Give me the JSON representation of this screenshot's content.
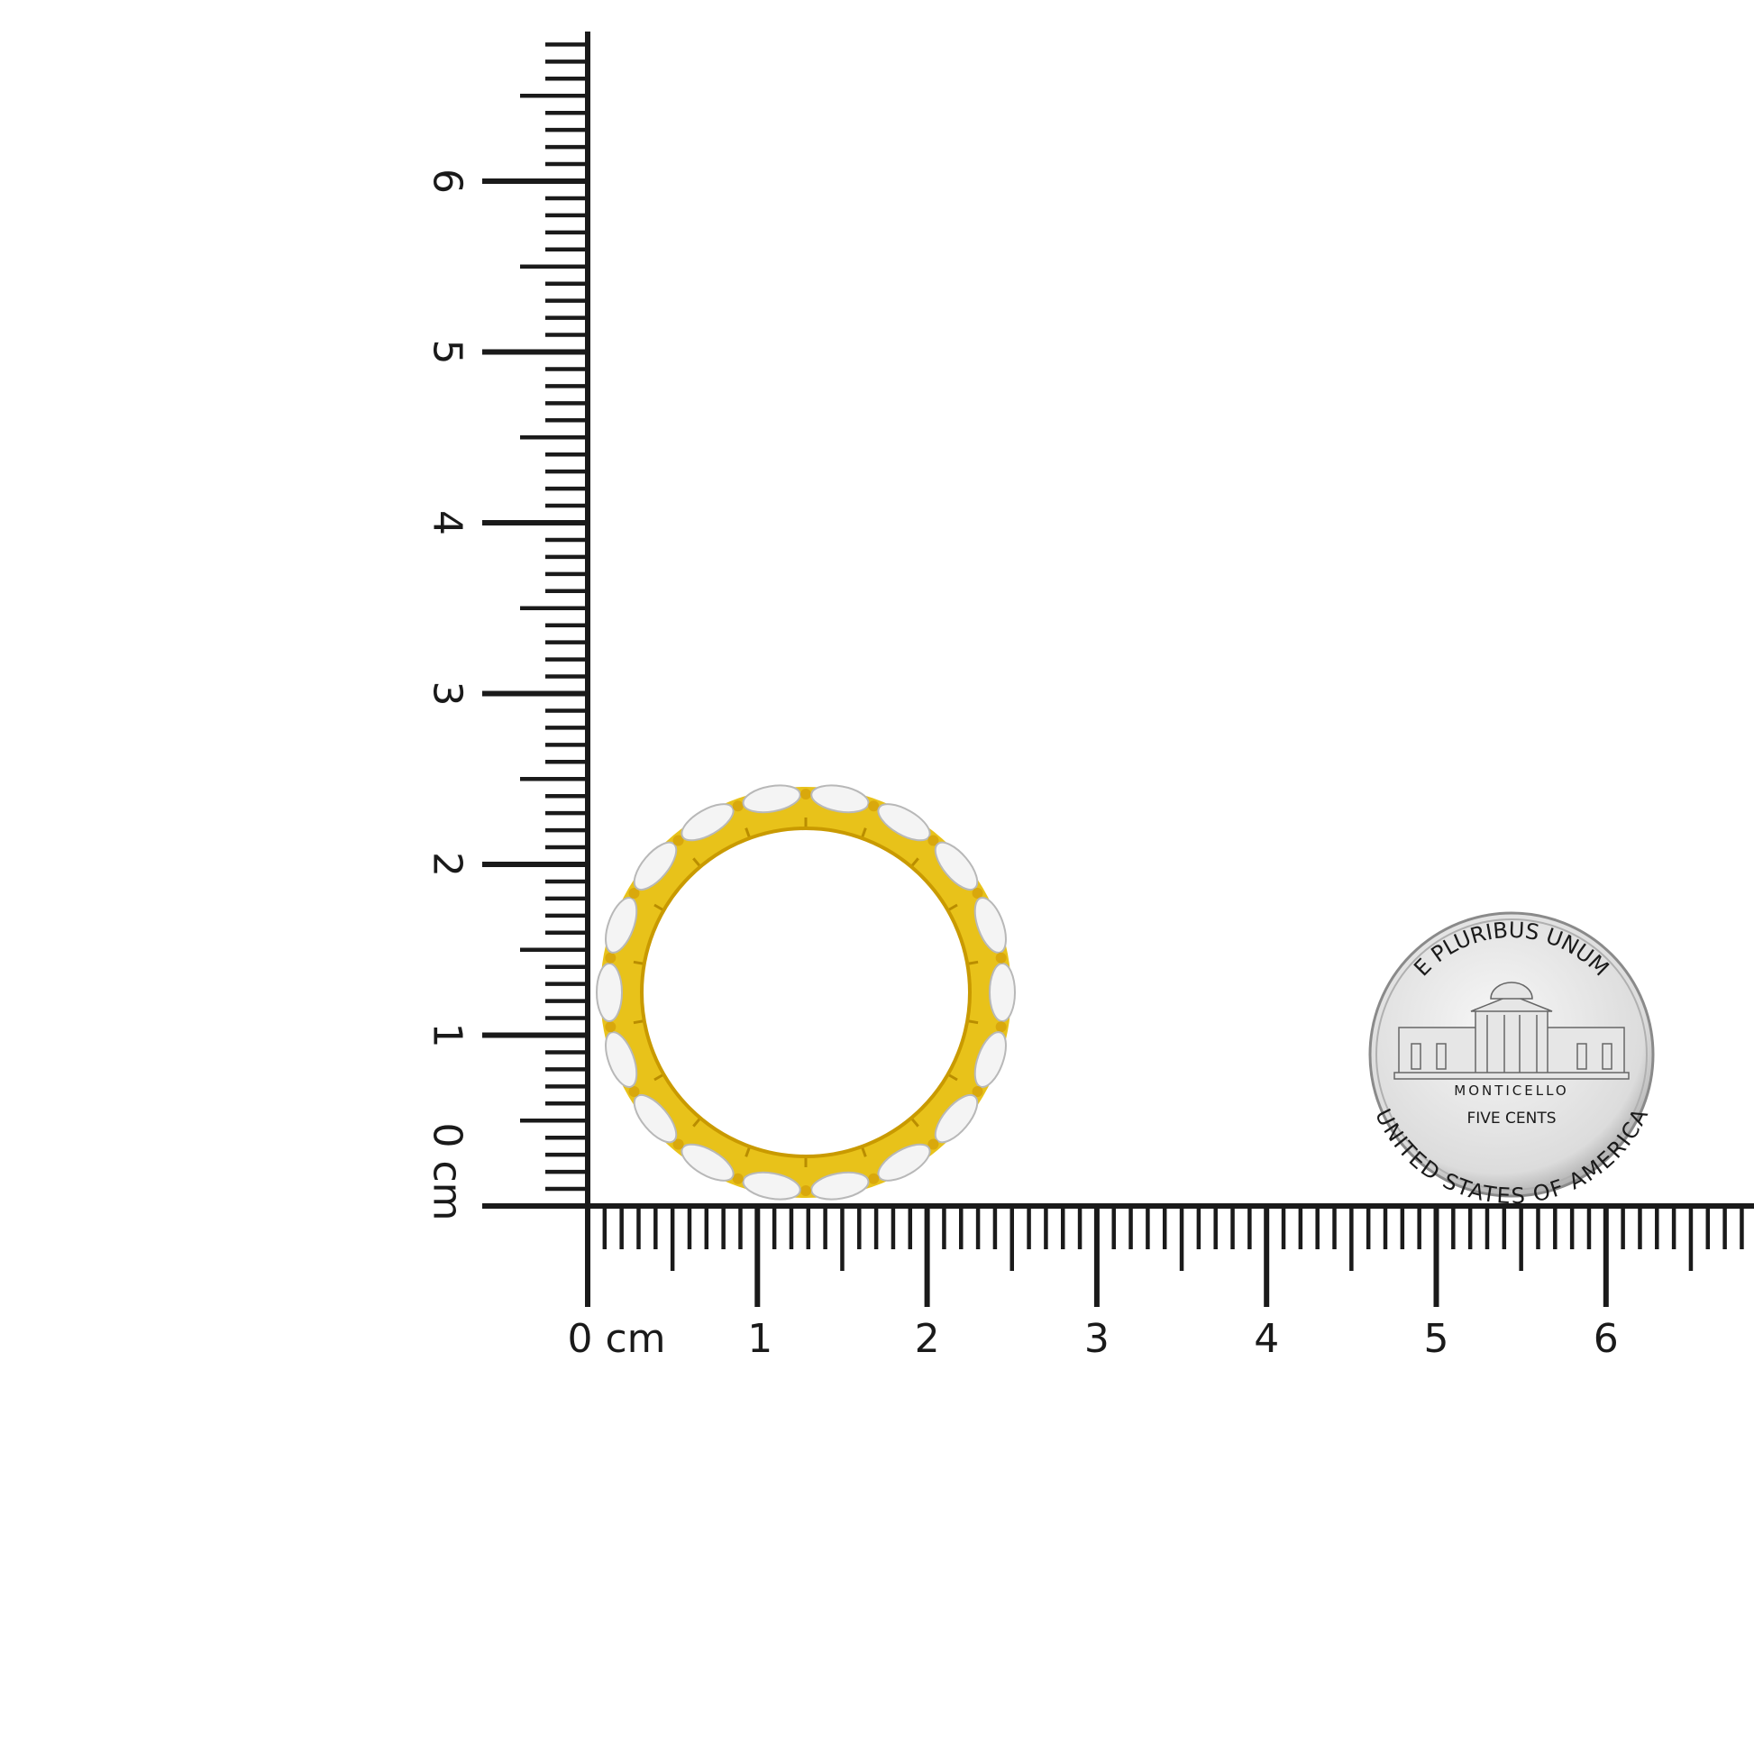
{
  "rulers": {
    "unit": "cm",
    "vertical": {
      "labels": [
        "0 cm",
        "1",
        "2",
        "3",
        "4",
        "5",
        "6"
      ],
      "max_cm": 6.8
    },
    "horizontal": {
      "labels": [
        "0 cm",
        "1",
        "2",
        "3",
        "4",
        "5",
        "6"
      ],
      "max_cm": 6.9
    }
  },
  "product": {
    "name": "ring-eternity-band",
    "metal_color": "#e8c21a",
    "stone_color": "#f4f4f4",
    "outer_diameter_cm": 2.4,
    "inner_diameter_cm": 1.9
  },
  "reference_coin": {
    "top_text": "E PLURIBUS UNUM",
    "building_text": "MONTICELLO",
    "value_text": "FIVE CENTS",
    "bottom_text": "UNITED STATES OF AMERICA"
  },
  "colors": {
    "ruler": "#1a1a1a",
    "background": "#ffffff",
    "coin": "#d9d9d9"
  }
}
